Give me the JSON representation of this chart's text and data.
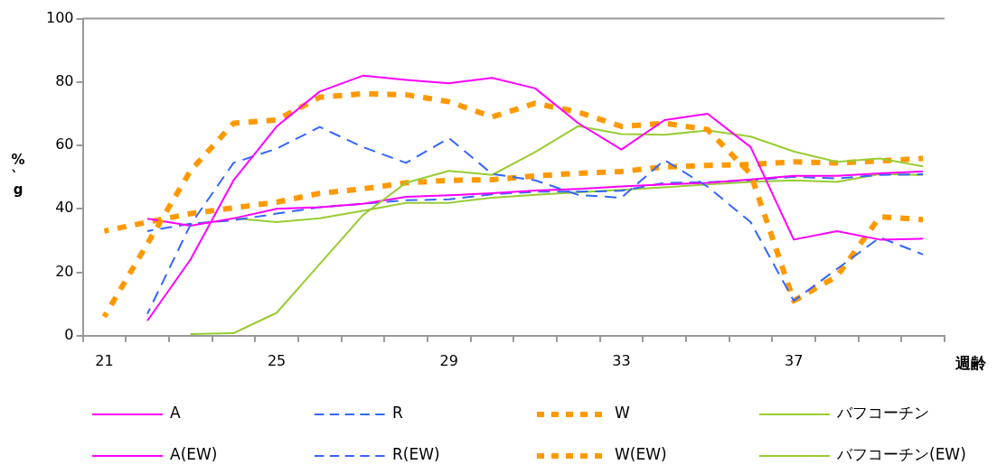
{
  "chart_data": {
    "type": "line",
    "xlabel": "週齢",
    "ylabel": "%、g",
    "categories": [
      "21",
      null,
      null,
      null,
      "25",
      null,
      null,
      null,
      "29",
      null,
      null,
      null,
      "33",
      null,
      null,
      null,
      "37",
      null,
      null,
      null
    ],
    "ylim": [
      0,
      100
    ],
    "yticks": [
      0,
      20,
      40,
      60,
      80,
      100
    ],
    "grid": false,
    "legend": "bottom",
    "marker": "none",
    "series": [
      {
        "name": "A",
        "color": "#ff00ff",
        "line_style": "solid",
        "values": [
          null,
          4.7,
          24,
          49,
          66,
          77,
          82,
          80.7,
          79.6,
          81.3,
          78,
          67,
          58.7,
          68,
          70,
          59.5,
          30.3,
          33,
          30.3,
          30.6
        ]
      },
      {
        "name": "R",
        "color": "#3366ff",
        "line_style": "dashed",
        "values": [
          null,
          6.9,
          35,
          54.5,
          59,
          65.8,
          59.5,
          54.5,
          62.3,
          51,
          49,
          44.4,
          43.5,
          55.4,
          47,
          35.8,
          11,
          21,
          31,
          25.6
        ]
      },
      {
        "name": "W",
        "color": "#ff9900",
        "line_style": "dotted",
        "values": [
          6,
          29,
          52,
          67,
          68,
          75.2,
          76.3,
          76,
          73.8,
          69,
          73.3,
          70.5,
          66,
          67,
          65,
          51,
          11,
          18.7,
          37.5,
          36.6
        ]
      },
      {
        "name": "バフコーチン",
        "color": "#99cc33",
        "line_style": "solid",
        "values": [
          null,
          null,
          0.5,
          0.8,
          7.2,
          22.6,
          38,
          48.2,
          52,
          50.7,
          57.9,
          66.1,
          63.6,
          63.4,
          64.7,
          62.8,
          58.1,
          54.8,
          55.9,
          53.4
        ]
      },
      {
        "name": "A(EW)",
        "color": "#ff00ff",
        "line_style": "solid",
        "values": [
          null,
          36.9,
          34.7,
          37,
          40,
          40.5,
          41.6,
          43.8,
          44.3,
          44.9,
          45.8,
          46.3,
          47.1,
          47.7,
          48.2,
          49.3,
          50.4,
          50.4,
          51.2,
          51.8
        ]
      },
      {
        "name": "R(EW)",
        "color": "#3366ff",
        "line_style": "dashed",
        "values": [
          null,
          33,
          35.3,
          36.4,
          38.5,
          40.5,
          41.6,
          42.7,
          43,
          44.6,
          45.4,
          45.4,
          45.7,
          48.2,
          48.4,
          49,
          50.1,
          49.6,
          50.7,
          50.9
        ]
      },
      {
        "name": "W(EW)",
        "color": "#ff9900",
        "line_style": "dotted",
        "values": [
          33,
          35.8,
          38.5,
          40.3,
          42.1,
          44.9,
          46.3,
          48.2,
          49,
          49.2,
          50.4,
          51.2,
          51.8,
          53.2,
          53.7,
          54,
          54.8,
          54.5,
          55.1,
          55.9
        ]
      },
      {
        "name": "バフコーチン(EW)",
        "color": "#99cc33",
        "line_style": "solid",
        "values": [
          null,
          null,
          null,
          37,
          35.8,
          37,
          39.4,
          41.9,
          41.9,
          43.5,
          44.4,
          45.2,
          46,
          46.8,
          47.7,
          48.5,
          49,
          48.5,
          51,
          50.7
        ]
      }
    ]
  }
}
